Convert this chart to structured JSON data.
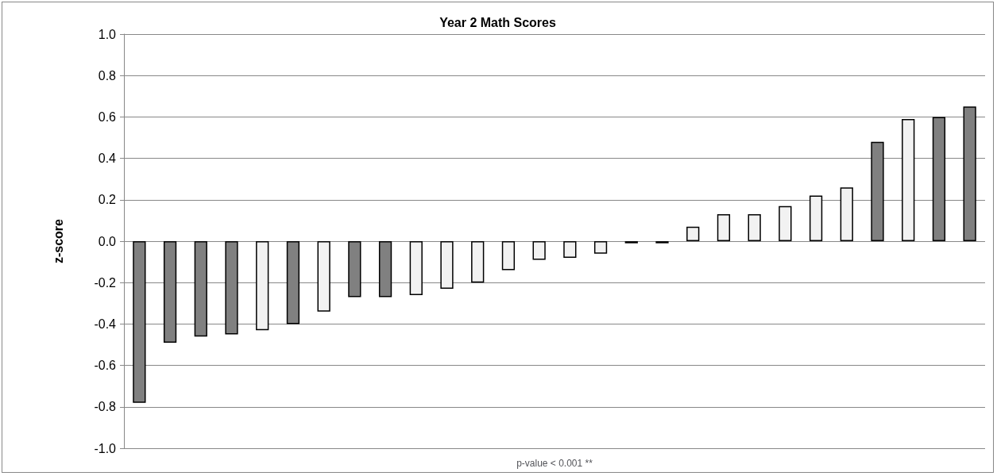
{
  "chart_data": {
    "type": "bar",
    "title": "Year 2 Math Scores",
    "xlabel": "p-value < 0.001 **",
    "ylabel": "z-score",
    "categories": [
      null,
      null,
      null,
      null,
      null,
      null,
      null,
      null,
      null,
      null,
      null,
      null,
      null,
      null,
      null,
      null,
      null,
      null,
      null,
      null,
      null,
      null,
      null,
      null,
      null,
      null,
      null,
      null
    ],
    "values": [
      -0.78,
      -0.49,
      -0.46,
      -0.45,
      -0.43,
      -0.4,
      -0.34,
      -0.27,
      -0.27,
      -0.26,
      -0.23,
      -0.2,
      -0.14,
      -0.09,
      -0.08,
      -0.06,
      -0.01,
      -0.01,
      0.07,
      0.13,
      0.13,
      0.17,
      0.22,
      0.26,
      0.48,
      0.59,
      0.6,
      0.65
    ],
    "colors": [
      "#808080",
      "#808080",
      "#808080",
      "#808080",
      "#f2f2f2",
      "#808080",
      "#f2f2f2",
      "#808080",
      "#808080",
      "#f2f2f2",
      "#f2f2f2",
      "#f2f2f2",
      "#f2f2f2",
      "#f2f2f2",
      "#f2f2f2",
      "#f2f2f2",
      "#f2f2f2",
      "#f2f2f2",
      "#f2f2f2",
      "#f2f2f2",
      "#f2f2f2",
      "#f2f2f2",
      "#f2f2f2",
      "#f2f2f2",
      "#808080",
      "#f2f2f2",
      "#808080",
      "#808080"
    ],
    "ylim": [
      -1.0,
      1.0
    ],
    "yticks": [
      {
        "value": -1.0,
        "label": "-1.0"
      },
      {
        "value": -0.8,
        "label": "-0.8"
      },
      {
        "value": -0.6,
        "label": "-0.6"
      },
      {
        "value": -0.4,
        "label": "-0.4"
      },
      {
        "value": -0.2,
        "label": "-0.2"
      },
      {
        "value": 0,
        "label": "0.0"
      },
      {
        "value": 0.2,
        "label": "0.2"
      },
      {
        "value": 0.4,
        "label": "0.4"
      },
      {
        "value": 0.6,
        "label": "0.6"
      },
      {
        "value": 0.8,
        "label": "0.8"
      },
      {
        "value": 1.0,
        "label": "1.0"
      }
    ],
    "grid": "y"
  }
}
